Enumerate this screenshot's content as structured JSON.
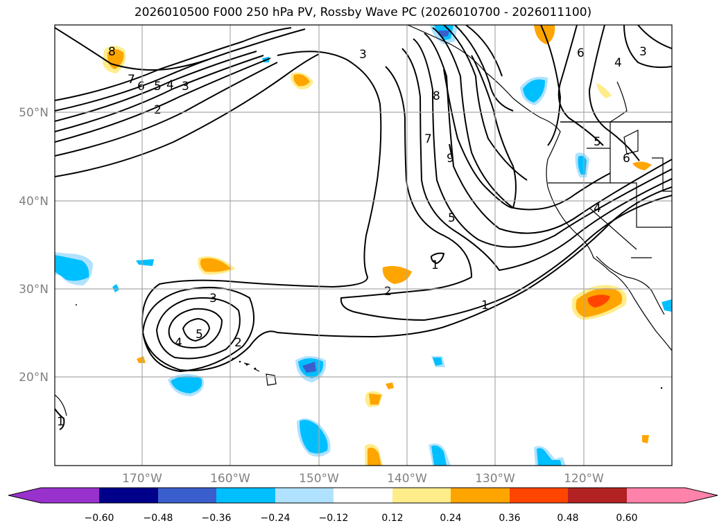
{
  "title": "2026010500 F000 250 hPa PV, Rossby Wave PC (2026010700 - 2026011100)",
  "map": {
    "lon_labels": [
      "170°W",
      "160°W",
      "150°W",
      "140°W",
      "130°W",
      "120°W"
    ],
    "lat_labels": [
      "50°N",
      "40°N",
      "30°N",
      "20°N"
    ],
    "gridline_color": "#a9a9a9",
    "label_color": "#808080"
  },
  "contours": {
    "line_color": "#000000",
    "labels": [
      "8",
      "7",
      "6",
      "5",
      "4",
      "3",
      "2",
      "3",
      "8",
      "7",
      "9",
      "5",
      "6",
      "3",
      "4",
      "5",
      "6",
      "4",
      "1",
      "2",
      "1",
      "3",
      "2",
      "5",
      "4",
      "1"
    ]
  },
  "colorbar": {
    "ticks": [
      "−0.60",
      "−0.48",
      "−0.36",
      "−0.24",
      "−0.12",
      "0.12",
      "0.24",
      "0.36",
      "0.48",
      "0.60"
    ],
    "colors": [
      "#9932cc",
      "#00008b",
      "#3a5fcd",
      "#00bfff",
      "#b0e2ff",
      "#ffffff",
      "#ffec8b",
      "#ffa500",
      "#ff4500",
      "#b22222",
      "#ff82ab"
    ]
  }
}
